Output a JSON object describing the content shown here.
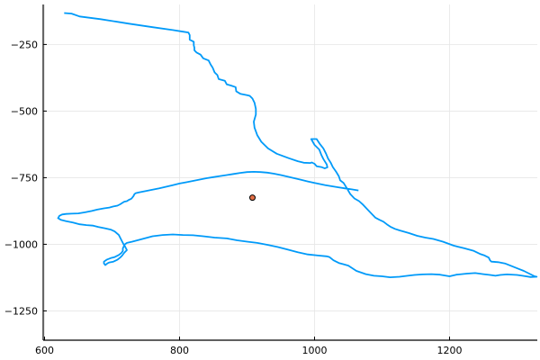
{
  "chart_data": {
    "type": "scatter",
    "title": "",
    "xlabel": "",
    "ylabel": "",
    "xlim": [
      598,
      1330
    ],
    "ylim": [
      -1360,
      -100
    ],
    "grid": true,
    "legend": "none",
    "x_ticks": [
      {
        "value": 600,
        "label": "600"
      },
      {
        "value": 800,
        "label": "800"
      },
      {
        "value": 1000,
        "label": "1000"
      },
      {
        "value": 1200,
        "label": "1200"
      }
    ],
    "y_ticks": [
      {
        "value": -250,
        "label": "−250"
      },
      {
        "value": -500,
        "label": "−500"
      },
      {
        "value": -750,
        "label": "−750"
      },
      {
        "value": -1000,
        "label": "−1000"
      },
      {
        "value": -1250,
        "label": "−1250"
      }
    ],
    "series": [
      {
        "kind": "line",
        "color": "#009af9",
        "points": [
          [
            629,
            -132
          ],
          [
            640,
            -134
          ],
          [
            652,
            -145
          ],
          [
            683,
            -155
          ],
          [
            725,
            -172
          ],
          [
            760,
            -185
          ],
          [
            790,
            -196
          ],
          [
            805,
            -202
          ],
          [
            813,
            -205
          ],
          [
            815,
            -215
          ],
          [
            815,
            -232
          ],
          [
            821,
            -240
          ],
          [
            821,
            -253
          ],
          [
            822,
            -262
          ],
          [
            822,
            -272
          ],
          [
            825,
            -280
          ],
          [
            831,
            -288
          ],
          [
            835,
            -302
          ],
          [
            843,
            -310
          ],
          [
            846,
            -325
          ],
          [
            849,
            -337
          ],
          [
            852,
            -355
          ],
          [
            856,
            -365
          ],
          [
            858,
            -380
          ],
          [
            867,
            -386
          ],
          [
            870,
            -400
          ],
          [
            876,
            -404
          ],
          [
            883,
            -410
          ],
          [
            884,
            -426
          ],
          [
            890,
            -435
          ],
          [
            900,
            -440
          ],
          [
            904,
            -443
          ],
          [
            908,
            -453
          ],
          [
            911,
            -469
          ],
          [
            913,
            -492
          ],
          [
            913,
            -513
          ],
          [
            910,
            -540
          ],
          [
            911,
            -562
          ],
          [
            915,
            -590
          ],
          [
            921,
            -615
          ],
          [
            931,
            -640
          ],
          [
            944,
            -660
          ],
          [
            962,
            -677
          ],
          [
            975,
            -688
          ],
          [
            984,
            -694
          ],
          [
            994,
            -695
          ],
          [
            996,
            -693
          ],
          [
            1000,
            -698
          ],
          [
            1003,
            -707
          ],
          [
            1010,
            -710
          ],
          [
            1015,
            -715
          ],
          [
            1019,
            -711
          ],
          [
            1018,
            -700
          ],
          [
            1013,
            -680
          ],
          [
            1010,
            -664
          ],
          [
            1007,
            -645
          ],
          [
            1000,
            -627
          ],
          [
            995,
            -605
          ],
          [
            1003,
            -605
          ],
          [
            1008,
            -624
          ],
          [
            1013,
            -640
          ],
          [
            1017,
            -660
          ],
          [
            1020,
            -678
          ],
          [
            1024,
            -694
          ],
          [
            1027,
            -710
          ],
          [
            1032,
            -728
          ],
          [
            1036,
            -745
          ],
          [
            1038,
            -760
          ],
          [
            1043,
            -770
          ],
          [
            1048,
            -790
          ],
          [
            1053,
            -812
          ],
          [
            1059,
            -828
          ],
          [
            1066,
            -838
          ],
          [
            1072,
            -852
          ],
          [
            1078,
            -868
          ],
          [
            1084,
            -884
          ],
          [
            1090,
            -900
          ],
          [
            1096,
            -908
          ],
          [
            1102,
            -915
          ],
          [
            1107,
            -925
          ],
          [
            1113,
            -935
          ],
          [
            1119,
            -942
          ],
          [
            1126,
            -948
          ],
          [
            1133,
            -953
          ],
          [
            1140,
            -958
          ],
          [
            1146,
            -963
          ],
          [
            1152,
            -968
          ],
          [
            1164,
            -975
          ],
          [
            1176,
            -980
          ],
          [
            1190,
            -990
          ],
          [
            1206,
            -1005
          ],
          [
            1222,
            -1015
          ],
          [
            1236,
            -1025
          ],
          [
            1246,
            -1037
          ],
          [
            1252,
            -1042
          ],
          [
            1258,
            -1050
          ],
          [
            1260,
            -1060
          ],
          [
            1262,
            -1065
          ],
          [
            1272,
            -1067
          ],
          [
            1282,
            -1072
          ],
          [
            1290,
            -1080
          ],
          [
            1300,
            -1090
          ],
          [
            1310,
            -1100
          ],
          [
            1318,
            -1110
          ],
          [
            1326,
            -1120
          ],
          [
            1329,
            -1122
          ],
          [
            1320,
            -1123
          ],
          [
            1308,
            -1118
          ],
          [
            1300,
            -1115
          ],
          [
            1285,
            -1113
          ],
          [
            1275,
            -1115
          ],
          [
            1268,
            -1118
          ],
          [
            1260,
            -1115
          ],
          [
            1250,
            -1112
          ],
          [
            1238,
            -1108
          ],
          [
            1226,
            -1110
          ],
          [
            1210,
            -1114
          ],
          [
            1200,
            -1120
          ],
          [
            1186,
            -1114
          ],
          [
            1173,
            -1112
          ],
          [
            1160,
            -1113
          ],
          [
            1148,
            -1115
          ],
          [
            1138,
            -1118
          ],
          [
            1126,
            -1122
          ],
          [
            1112,
            -1124
          ],
          [
            1100,
            -1120
          ],
          [
            1088,
            -1118
          ],
          [
            1076,
            -1112
          ],
          [
            1062,
            -1100
          ],
          [
            1050,
            -1080
          ],
          [
            1036,
            -1070
          ],
          [
            1028,
            -1060
          ],
          [
            1022,
            -1048
          ],
          [
            1018,
            -1045
          ],
          [
            1005,
            -1042
          ],
          [
            990,
            -1038
          ],
          [
            975,
            -1030
          ],
          [
            960,
            -1020
          ],
          [
            945,
            -1010
          ],
          [
            930,
            -1002
          ],
          [
            915,
            -995
          ],
          [
            900,
            -990
          ],
          [
            885,
            -985
          ],
          [
            870,
            -978
          ],
          [
            852,
            -975
          ],
          [
            835,
            -970
          ],
          [
            820,
            -966
          ],
          [
            805,
            -965
          ],
          [
            790,
            -963
          ],
          [
            775,
            -965
          ],
          [
            760,
            -970
          ],
          [
            745,
            -980
          ],
          [
            730,
            -990
          ],
          [
            722,
            -995
          ],
          [
            718,
            -1002
          ],
          [
            720,
            -1012
          ],
          [
            722,
            -1022
          ],
          [
            718,
            -1032
          ],
          [
            715,
            -1042
          ],
          [
            712,
            -1050
          ],
          [
            708,
            -1058
          ],
          [
            702,
            -1065
          ],
          [
            696,
            -1068
          ],
          [
            693,
            -1072
          ],
          [
            690,
            -1078
          ],
          [
            688,
            -1072
          ],
          [
            688,
            -1065
          ],
          [
            692,
            -1058
          ],
          [
            698,
            -1052
          ],
          [
            704,
            -1048
          ],
          [
            710,
            -1040
          ],
          [
            714,
            -1032
          ],
          [
            716,
            -1025
          ],
          [
            716,
            -1015
          ],
          [
            718,
            -1005
          ],
          [
            716,
            -995
          ],
          [
            714,
            -985
          ],
          [
            712,
            -975
          ],
          [
            710,
            -965
          ],
          [
            704,
            -952
          ],
          [
            698,
            -945
          ],
          [
            690,
            -940
          ],
          [
            680,
            -935
          ],
          [
            672,
            -930
          ],
          [
            662,
            -928
          ],
          [
            652,
            -925
          ],
          [
            642,
            -918
          ],
          [
            632,
            -913
          ],
          [
            624,
            -908
          ],
          [
            620,
            -902
          ],
          [
            622,
            -893
          ],
          [
            626,
            -888
          ],
          [
            632,
            -886
          ],
          [
            640,
            -885
          ],
          [
            650,
            -884
          ],
          [
            660,
            -880
          ],
          [
            670,
            -875
          ],
          [
            678,
            -870
          ],
          [
            688,
            -865
          ],
          [
            696,
            -862
          ],
          [
            702,
            -858
          ],
          [
            708,
            -855
          ],
          [
            712,
            -850
          ],
          [
            715,
            -845
          ],
          [
            718,
            -840
          ],
          [
            722,
            -838
          ],
          [
            725,
            -833
          ],
          [
            728,
            -830
          ],
          [
            730,
            -825
          ],
          [
            732,
            -818
          ],
          [
            733,
            -812
          ],
          [
            735,
            -808
          ],
          [
            740,
            -805
          ],
          [
            750,
            -800
          ],
          [
            760,
            -795
          ],
          [
            770,
            -790
          ],
          [
            780,
            -784
          ],
          [
            790,
            -778
          ],
          [
            800,
            -772
          ],
          [
            810,
            -767
          ],
          [
            820,
            -762
          ],
          [
            830,
            -757
          ],
          [
            840,
            -752
          ],
          [
            850,
            -748
          ],
          [
            860,
            -744
          ],
          [
            870,
            -740
          ],
          [
            880,
            -736
          ],
          [
            890,
            -732
          ],
          [
            900,
            -729
          ],
          [
            910,
            -728
          ],
          [
            920,
            -729
          ],
          [
            930,
            -731
          ],
          [
            940,
            -735
          ],
          [
            950,
            -740
          ],
          [
            960,
            -746
          ],
          [
            970,
            -752
          ],
          [
            980,
            -758
          ],
          [
            990,
            -764
          ],
          [
            1000,
            -770
          ],
          [
            1008,
            -774
          ],
          [
            1016,
            -778
          ],
          [
            1025,
            -782
          ],
          [
            1035,
            -786
          ],
          [
            1045,
            -790
          ],
          [
            1055,
            -794
          ],
          [
            1065,
            -798
          ]
        ]
      },
      {
        "kind": "marker",
        "color": "#e26f46",
        "points": [
          [
            908,
            -825
          ]
        ]
      }
    ]
  }
}
